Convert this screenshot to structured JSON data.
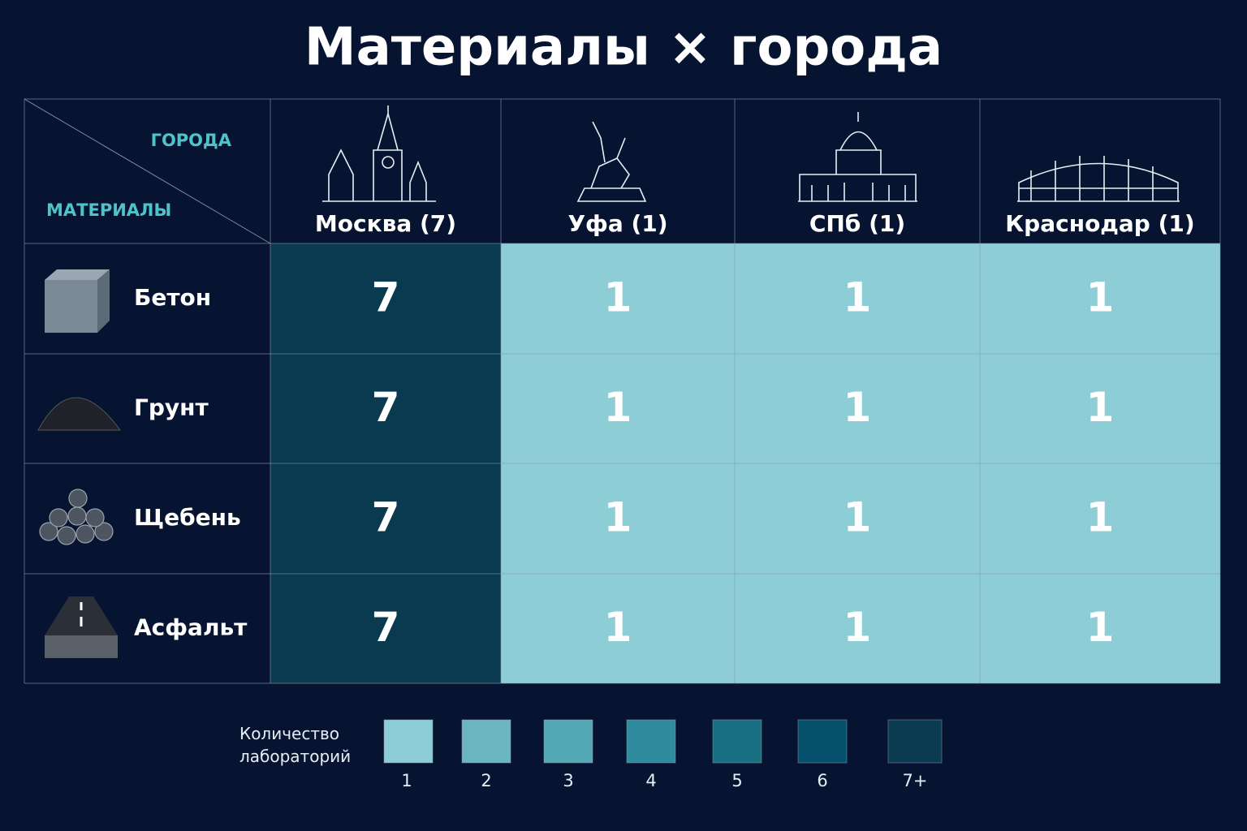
{
  "chart_data": {
    "type": "heatmap",
    "title": "Материалы × города",
    "x_label": "ГОРОДА",
    "y_label": "МАТЕРИАЛЫ",
    "x_categories": [
      "Москва (7)",
      "Уфа (1)",
      "СПб (1)",
      "Краснодар (1)"
    ],
    "y_categories": [
      "Бетон",
      "Грунт",
      "Щебень",
      "Асфальт"
    ],
    "values": [
      [
        7,
        1,
        1,
        1
      ],
      [
        7,
        1,
        1,
        1
      ],
      [
        7,
        1,
        1,
        1
      ],
      [
        7,
        1,
        1,
        1
      ]
    ],
    "legend": {
      "title": "Количество лабораторий",
      "ticks": [
        1,
        2,
        3,
        4,
        5,
        6,
        {
          "value": 7,
          "label": "7+"
        }
      ],
      "colors": [
        "#8ccdd6",
        "#6ab5c0",
        "#55a8b6",
        "#2f8c9e",
        "#186f82",
        "#05506a",
        "#0a3a50"
      ]
    }
  }
}
